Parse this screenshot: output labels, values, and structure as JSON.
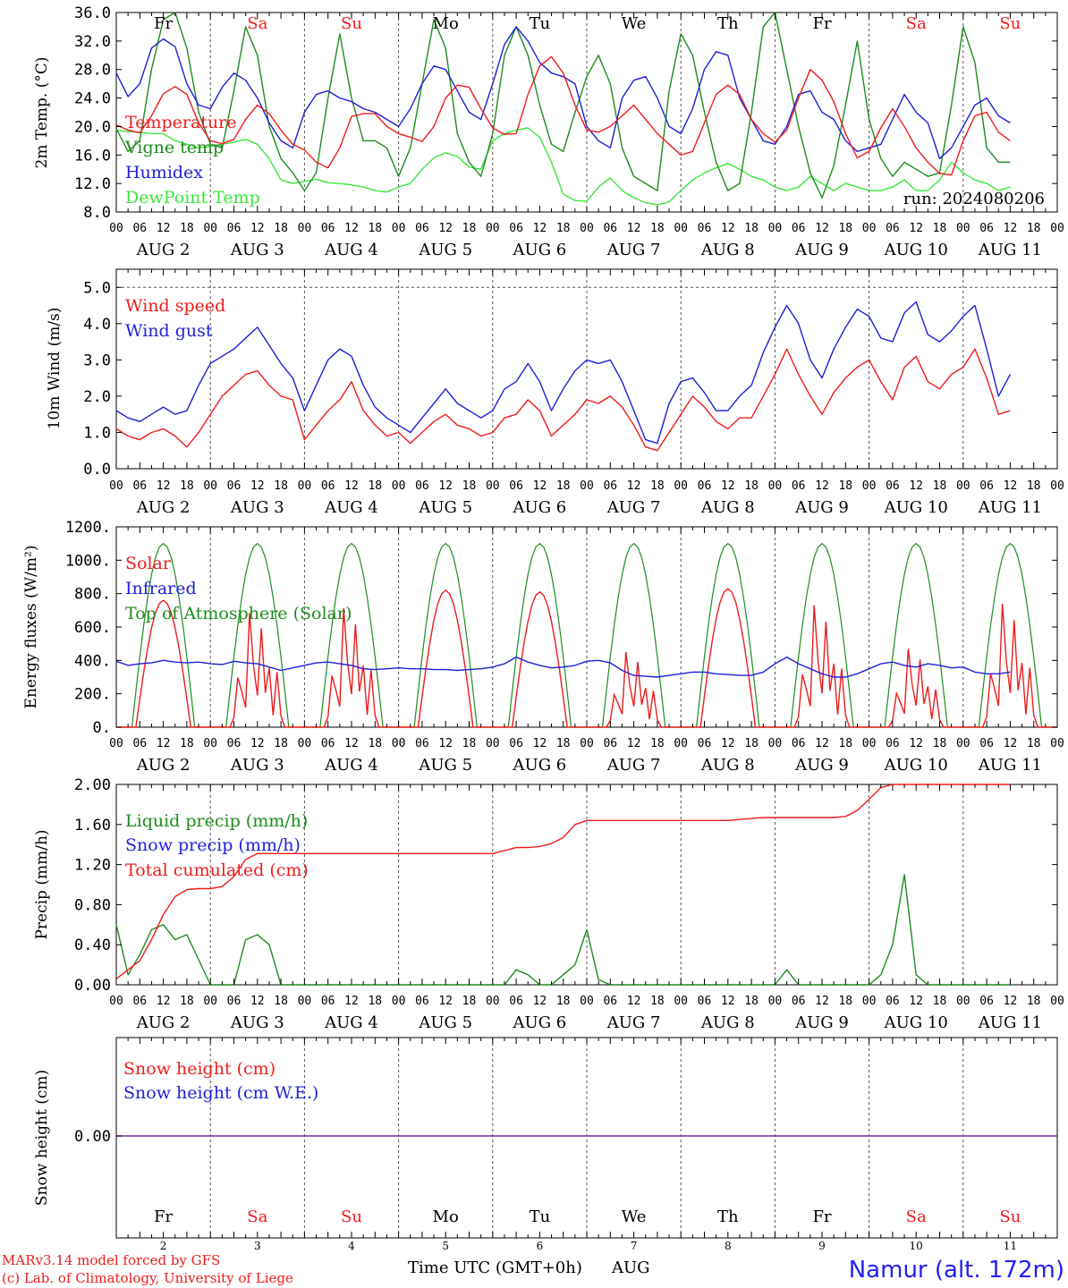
{
  "colors": {
    "red": "#ee1c1c",
    "green": "#1e8c1e",
    "blue": "#1f1fd8",
    "light_green": "#3ce63c",
    "purple": "#7a2a9a",
    "black": "#000000",
    "grid": "#555555"
  },
  "days": [
    {
      "day_label": "Fr",
      "weekend": false,
      "month_label": "AUG  2",
      "num": "2"
    },
    {
      "day_label": "Sa",
      "weekend": true,
      "month_label": "AUG  3",
      "num": "3"
    },
    {
      "day_label": "Su",
      "weekend": true,
      "month_label": "AUG  4",
      "num": "4"
    },
    {
      "day_label": "Mo",
      "weekend": false,
      "month_label": "AUG  5",
      "num": "5"
    },
    {
      "day_label": "Tu",
      "weekend": false,
      "month_label": "AUG  6",
      "num": "6"
    },
    {
      "day_label": "We",
      "weekend": false,
      "month_label": "AUG  7",
      "num": "7"
    },
    {
      "day_label": "Th",
      "weekend": false,
      "month_label": "AUG  8",
      "num": "8"
    },
    {
      "day_label": "Fr",
      "weekend": false,
      "month_label": "AUG  9",
      "num": "9"
    },
    {
      "day_label": "Sa",
      "weekend": true,
      "month_label": "AUG 10",
      "num": "10"
    },
    {
      "day_label": "Su",
      "weekend": true,
      "month_label": "AUG 11",
      "num": "11"
    }
  ],
  "hour_labels": [
    "00",
    "06",
    "12",
    "18"
  ],
  "hour_label_end": "00",
  "footer": {
    "model": "MARv3.14 model forced by GFS",
    "copyright": "(c) Lab. of Climatology, University of Liege",
    "xlabel": "Time UTC (GMT+0h)",
    "month": "AUG",
    "station": "Namur (alt. 172m)"
  },
  "chart_data": [
    {
      "id": "temperature",
      "type": "line",
      "ylabel": "2m Temp. (°C)",
      "ylim": [
        8.0,
        36.0
      ],
      "yticks": [
        "8.0",
        "12.0",
        "16.0",
        "20.0",
        "24.0",
        "28.0",
        "32.0",
        "36.0"
      ],
      "annotation": "run: 2024080206",
      "x_unit": "hours since AUG 2 00 UTC, 3-hourly",
      "series": [
        {
          "name": "Temperature",
          "color": "red",
          "values": [
            20.2,
            19.5,
            19.1,
            21.5,
            24.6,
            25.6,
            24.5,
            20.5,
            18.0,
            17.6,
            18.2,
            21.0,
            23.0,
            21.8,
            19.5,
            17.5,
            16.7,
            15.0,
            14.2,
            17.0,
            21.4,
            21.8,
            21.8,
            20.0,
            19.0,
            18.5,
            17.9,
            20.0,
            24.0,
            25.8,
            25.5,
            22.5,
            19.8,
            18.9,
            19.0,
            24.5,
            28.5,
            29.8,
            27.5,
            23.0,
            19.5,
            19.2,
            20.0,
            21.5,
            23.0,
            21.0,
            19.0,
            17.5,
            16.0,
            16.5,
            20.5,
            24.5,
            25.8,
            24.5,
            21.0,
            19.0,
            17.8,
            19.5,
            24.0,
            28.0,
            26.5,
            23.5,
            19.0,
            15.6,
            16.5,
            19.8,
            22.5,
            20.0,
            17.0,
            15.0,
            13.4,
            13.2,
            18.0,
            21.5,
            22.0,
            19.2,
            18.0
          ]
        },
        {
          "name": "Vigne temp",
          "color": "green",
          "values": [
            19.7,
            16.5,
            18.0,
            28.0,
            35.0,
            36.0,
            31.0,
            22.0,
            17.5,
            17.0,
            25.0,
            34.0,
            30.0,
            20.0,
            15.5,
            13.5,
            11.0,
            13.5,
            24.0,
            33.0,
            24.0,
            18.0,
            18.0,
            17.0,
            13.0,
            17.0,
            26.0,
            35.0,
            31.0,
            19.0,
            15.0,
            13.0,
            19.0,
            30.0,
            34.0,
            30.0,
            23.0,
            17.5,
            16.5,
            22.0,
            27.0,
            30.0,
            26.0,
            17.0,
            13.0,
            12.0,
            11.0,
            25.0,
            33.0,
            30.0,
            22.0,
            15.0,
            11.0,
            12.0,
            22.0,
            34.0,
            36.0,
            28.0,
            20.0,
            13.5,
            10.0,
            14.5,
            23.0,
            32.0,
            21.0,
            15.5,
            13.0,
            15.0,
            14.0,
            13.0,
            13.5,
            23.0,
            34.0,
            29.0,
            17.0,
            15.0,
            15.0
          ]
        },
        {
          "name": "Humidex",
          "color": "blue",
          "values": [
            27.5,
            24.2,
            26.0,
            31.0,
            32.3,
            31.2,
            26.0,
            23.0,
            22.5,
            25.5,
            27.5,
            26.5,
            24.0,
            20.5,
            18.0,
            17.0,
            22.0,
            24.5,
            25.0,
            24.0,
            23.5,
            22.5,
            22.0,
            21.0,
            20.0,
            22.5,
            26.0,
            28.5,
            28.0,
            25.0,
            22.0,
            21.0,
            26.0,
            31.5,
            34.0,
            32.0,
            29.0,
            27.5,
            27.0,
            26.0,
            20.0,
            18.0,
            17.0,
            24.0,
            26.5,
            27.0,
            24.0,
            20.0,
            19.0,
            22.5,
            28.0,
            30.5,
            30.0,
            24.0,
            21.0,
            18.0,
            17.5,
            20.0,
            24.5,
            25.0,
            22.0,
            21.0,
            18.0,
            16.5,
            17.0,
            17.5,
            21.0,
            24.5,
            22.0,
            20.5,
            15.5,
            17.0,
            20.0,
            23.0,
            24.0,
            21.5,
            20.5
          ]
        },
        {
          "name": "DewPoint Temp",
          "color": "light_green",
          "values": [
            19.5,
            19.3,
            19.2,
            19.0,
            19.0,
            18.0,
            17.5,
            17.0,
            17.2,
            17.5,
            17.8,
            18.2,
            17.5,
            15.5,
            12.5,
            12.0,
            12.3,
            12.6,
            12.1,
            12.0,
            11.8,
            11.5,
            11.0,
            10.8,
            11.5,
            12.0,
            14.0,
            15.6,
            16.3,
            15.8,
            14.3,
            14.0,
            18.0,
            19.0,
            19.5,
            19.8,
            18.5,
            15.0,
            10.5,
            9.6,
            9.5,
            11.5,
            12.8,
            11.0,
            10.0,
            9.3,
            9.0,
            9.4,
            11.0,
            12.5,
            13.5,
            14.2,
            14.8,
            14.0,
            13.0,
            12.5,
            11.5,
            11.0,
            11.5,
            13.0,
            12.0,
            11.0,
            12.0,
            11.5,
            11.0,
            11.0,
            11.5,
            12.5,
            11.0,
            11.0,
            12.5,
            15.0,
            13.5,
            12.5,
            12.0,
            11.0,
            11.5
          ]
        }
      ]
    },
    {
      "id": "wind",
      "type": "line",
      "ylabel": "10m Wind (m/s)",
      "ylim": [
        0.0,
        5.5
      ],
      "yticks": [
        "0.0",
        "1.0",
        "2.0",
        "3.0",
        "4.0",
        "5.0"
      ],
      "dashed_reference": 5.0,
      "series": [
        {
          "name": "Wind speed",
          "color": "red",
          "values": [
            1.1,
            0.9,
            0.8,
            1.0,
            1.1,
            0.9,
            0.6,
            1.0,
            1.5,
            2.0,
            2.3,
            2.6,
            2.7,
            2.3,
            2.0,
            1.9,
            0.8,
            1.2,
            1.6,
            1.9,
            2.4,
            1.6,
            1.2,
            0.9,
            1.0,
            0.7,
            1.0,
            1.3,
            1.5,
            1.2,
            1.1,
            0.9,
            1.0,
            1.4,
            1.5,
            1.9,
            1.6,
            0.9,
            1.2,
            1.5,
            1.9,
            1.8,
            2.0,
            1.7,
            1.2,
            0.6,
            0.5,
            1.0,
            1.5,
            2.0,
            1.7,
            1.3,
            1.1,
            1.4,
            1.4,
            2.0,
            2.6,
            3.3,
            2.6,
            2.0,
            1.5,
            2.1,
            2.5,
            2.8,
            3.0,
            2.4,
            1.9,
            2.8,
            3.1,
            2.4,
            2.2,
            2.6,
            2.8,
            3.3,
            2.5,
            1.5,
            1.6
          ]
        },
        {
          "name": "Wind gust",
          "color": "blue",
          "values": [
            1.6,
            1.4,
            1.3,
            1.5,
            1.7,
            1.5,
            1.6,
            2.3,
            2.9,
            3.1,
            3.3,
            3.6,
            3.9,
            3.4,
            2.9,
            2.5,
            1.6,
            2.3,
            3.0,
            3.3,
            3.1,
            2.3,
            1.7,
            1.4,
            1.2,
            1.0,
            1.4,
            1.8,
            2.2,
            1.8,
            1.6,
            1.4,
            1.6,
            2.2,
            2.4,
            2.9,
            2.4,
            1.6,
            2.2,
            2.7,
            3.0,
            2.9,
            3.0,
            2.4,
            1.6,
            0.8,
            0.7,
            1.8,
            2.4,
            2.5,
            2.1,
            1.6,
            1.6,
            2.0,
            2.3,
            3.2,
            3.9,
            4.5,
            4.0,
            3.0,
            2.5,
            3.3,
            3.9,
            4.4,
            4.2,
            3.6,
            3.5,
            4.3,
            4.6,
            3.7,
            3.5,
            3.8,
            4.2,
            4.5,
            3.3,
            2.0,
            2.6
          ]
        }
      ]
    },
    {
      "id": "energy",
      "type": "line",
      "ylabel": "Energy fluxes (W/m²)",
      "ylim": [
        0,
        1200
      ],
      "yticks": [
        "0.",
        "200.",
        "400.",
        "600.",
        "800.",
        "1000.",
        "1200."
      ],
      "series": [
        {
          "name": "Solar",
          "color": "red",
          "peaks": [
            760,
            760,
            790,
            820,
            810,
            500,
            830,
            810,
            520,
            820
          ],
          "cloudy_days": [
            1,
            2,
            5,
            7,
            8,
            9
          ]
        },
        {
          "name": "Infrared",
          "color": "blue",
          "values": [
            395,
            370,
            380,
            385,
            400,
            390,
            385,
            390,
            380,
            375,
            395,
            385,
            380,
            360,
            340,
            355,
            370,
            385,
            390,
            380,
            370,
            350,
            345,
            350,
            355,
            350,
            350,
            345,
            345,
            340,
            345,
            350,
            360,
            380,
            420,
            390,
            370,
            355,
            360,
            370,
            395,
            400,
            385,
            340,
            310,
            305,
            300,
            310,
            320,
            330,
            330,
            320,
            315,
            310,
            310,
            330,
            380,
            420,
            380,
            350,
            320,
            300,
            300,
            320,
            350,
            380,
            390,
            370,
            360,
            380,
            370,
            355,
            360,
            330,
            320,
            320,
            330
          ]
        },
        {
          "name": "Top of Atmosphere (Solar)",
          "color": "green",
          "peak": 1100
        }
      ]
    },
    {
      "id": "precip",
      "type": "line",
      "ylabel": "Precip (mm/h)",
      "ylim": [
        0.0,
        2.0
      ],
      "yticks": [
        "0.00",
        "0.40",
        "0.80",
        "1.20",
        "1.60",
        "2.00"
      ],
      "series": [
        {
          "name": "Liquid precip (mm/h)",
          "color": "green",
          "values": [
            0.6,
            0.1,
            0.3,
            0.55,
            0.6,
            0.45,
            0.5,
            0.25,
            0.0,
            0.0,
            0.0,
            0.45,
            0.5,
            0.4,
            0.0,
            0,
            0,
            0,
            0,
            0,
            0,
            0,
            0,
            0,
            0,
            0,
            0,
            0,
            0,
            0,
            0,
            0,
            0,
            0,
            0.15,
            0.1,
            0,
            0,
            0.1,
            0.2,
            0.55,
            0.05,
            0,
            0,
            0,
            0,
            0,
            0,
            0,
            0,
            0,
            0,
            0,
            0,
            0,
            0,
            0,
            0.15,
            0,
            0,
            0,
            0,
            0,
            0,
            0,
            0.1,
            0.4,
            1.1,
            0.1,
            0,
            0,
            0,
            0,
            0,
            0,
            0,
            0
          ]
        },
        {
          "name": "Snow precip (mm/h)",
          "color": "blue",
          "values": []
        },
        {
          "name": "Total cumulated (cm)",
          "color": "red",
          "values": [
            0.06,
            0.15,
            0.24,
            0.45,
            0.7,
            0.88,
            0.95,
            0.96,
            0.96,
            0.98,
            1.08,
            1.25,
            1.31,
            1.31,
            1.31,
            1.31,
            1.31,
            1.31,
            1.31,
            1.31,
            1.31,
            1.31,
            1.31,
            1.31,
            1.31,
            1.31,
            1.31,
            1.31,
            1.31,
            1.31,
            1.31,
            1.31,
            1.31,
            1.34,
            1.37,
            1.37,
            1.38,
            1.41,
            1.47,
            1.6,
            1.64,
            1.64,
            1.64,
            1.64,
            1.64,
            1.64,
            1.64,
            1.64,
            1.64,
            1.64,
            1.64,
            1.64,
            1.64,
            1.65,
            1.66,
            1.67,
            1.67,
            1.67,
            1.67,
            1.67,
            1.67,
            1.67,
            1.68,
            1.74,
            1.85,
            1.97,
            2.0,
            2.0,
            2.0,
            2.0,
            2.0,
            2.0,
            2.0,
            2.0,
            2.0,
            2.0,
            2.0
          ]
        }
      ]
    },
    {
      "id": "snow",
      "type": "line",
      "ylabel": "Snow height (cm)",
      "ytick": "0.00",
      "series": [
        {
          "name": "Snow height (cm)",
          "color": "red",
          "values": [
            0
          ]
        },
        {
          "name": "Snow height (cm W.E.)",
          "color": "blue",
          "values": [
            0
          ]
        }
      ]
    }
  ]
}
